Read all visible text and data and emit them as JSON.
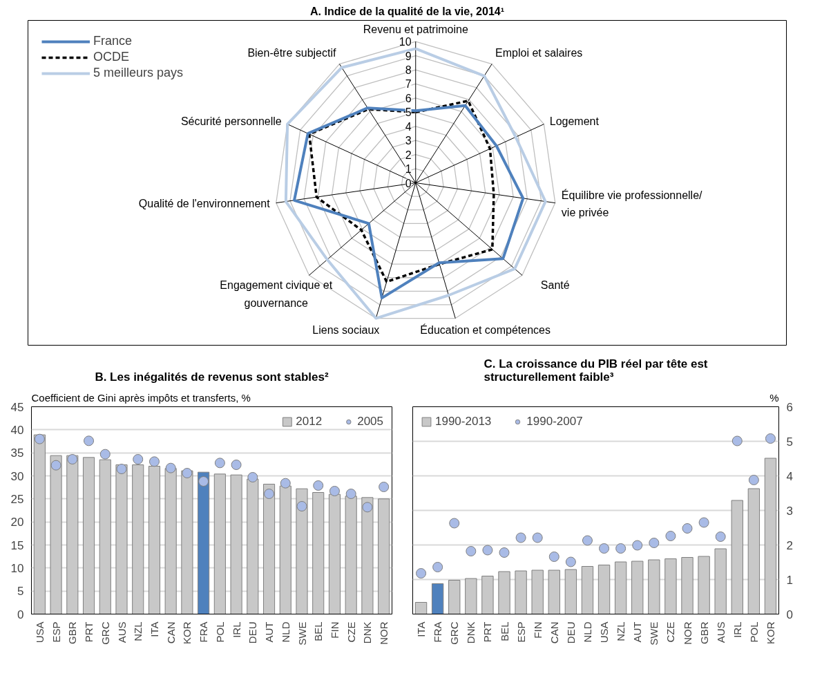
{
  "chart_data": [
    {
      "type": "radar",
      "title": "A. Indice de la qualité de la vie, 2014¹",
      "categories": [
        "Revenu et patrimoine",
        "Emploi et salaires",
        "Logement",
        "Équilibre vie professionnelle/\nvie privée",
        "Santé",
        "Éducation et compétences",
        "Liens sociaux",
        "Engagement civique et\ngouvernance",
        "Qualité de l'environnement",
        "Sécurité personnelle",
        "Bien-être subjectif"
      ],
      "ylim": [
        0,
        10
      ],
      "yticks": [
        0,
        1,
        2,
        3,
        4,
        5,
        6,
        7,
        8,
        9,
        10
      ],
      "grid": true,
      "legend": "top left",
      "marker": "none",
      "series": [
        {
          "name": "France",
          "color": "#4f81bd",
          "line_style": "solid",
          "values": [
            5.1,
            6.5,
            6.3,
            7.7,
            8.2,
            5.9,
            8.5,
            4.4,
            8.7,
            8.4,
            6.3
          ]
        },
        {
          "name": "OCDE",
          "color": "#000000",
          "line_style": "dashed",
          "values": [
            5.0,
            6.9,
            5.8,
            5.6,
            7.2,
            6.0,
            7.3,
            5.1,
            7.1,
            8.3,
            6.2
          ]
        },
        {
          "name": "5 meilleurs pays",
          "color": "#b9cde5",
          "line_style": "solid",
          "values": [
            9.5,
            9.0,
            7.8,
            9.3,
            9.3,
            8.3,
            10.0,
            8.3,
            9.3,
            10.0,
            9.7
          ]
        }
      ]
    },
    {
      "type": "bar",
      "title": "B. Les inégalités de revenus sont stables²",
      "ylabel": "Coefficient de Gini après impôts et transferts, %",
      "categories": [
        "USA",
        "ESP",
        "GBR",
        "PRT",
        "GRC",
        "AUS",
        "NZL",
        "ITA",
        "CAN",
        "KOR",
        "FRA",
        "POL",
        "IRL",
        "DEU",
        "AUT",
        "NLD",
        "SWE",
        "BEL",
        "FIN",
        "CZE",
        "DNK",
        "NOR"
      ],
      "ylim": [
        0,
        45
      ],
      "yticks": [
        0,
        5,
        10,
        15,
        20,
        25,
        30,
        35,
        40,
        45
      ],
      "grid": "y",
      "legend": "top right",
      "series": [
        {
          "name": "2012",
          "type": "bar",
          "colors": [
            "#c8c8c8",
            "#c8c8c8",
            "#c8c8c8",
            "#c8c8c8",
            "#c8c8c8",
            "#c8c8c8",
            "#c8c8c8",
            "#c8c8c8",
            "#c8c8c8",
            "#c8c8c8",
            "#4f81bd",
            "#c8c8c8",
            "#c8c8c8",
            "#c8c8c8",
            "#c8c8c8",
            "#c8c8c8",
            "#c8c8c8",
            "#c8c8c8",
            "#c8c8c8",
            "#c8c8c8",
            "#c8c8c8",
            "#c8c8c8"
          ],
          "values": [
            38.9,
            34.4,
            34.4,
            34.0,
            33.5,
            32.4,
            32.4,
            32.1,
            31.6,
            31.1,
            30.8,
            30.4,
            30.2,
            29.3,
            28.2,
            27.8,
            27.2,
            26.4,
            26.0,
            25.6,
            25.3,
            25.0
          ]
        },
        {
          "name": "2005",
          "type": "scatter",
          "marker": "circle",
          "color": "#a9bbe6",
          "values": [
            38.0,
            32.3,
            33.6,
            37.6,
            34.7,
            31.5,
            33.6,
            33.1,
            31.7,
            30.6,
            28.8,
            32.8,
            32.4,
            29.7,
            26.1,
            28.4,
            23.4,
            27.9,
            26.7,
            26.1,
            23.2,
            27.6
          ]
        }
      ]
    },
    {
      "type": "bar",
      "title": "C. La croissance du PIB réel par tête est\nstructurellement faible³",
      "y2label": "%",
      "categories": [
        "ITA",
        "FRA",
        "GRC",
        "DNK",
        "PRT",
        "BEL",
        "ESP",
        "FIN",
        "CAN",
        "DEU",
        "NLD",
        "USA",
        "NZL",
        "AUT",
        "SWE",
        "CZE",
        "NOR",
        "GBR",
        "AUS",
        "IRL",
        "POL",
        "KOR"
      ],
      "y2lim": [
        0,
        6
      ],
      "y2ticks": [
        0,
        1,
        2,
        3,
        4,
        5,
        6
      ],
      "grid": "y",
      "legend": "top left",
      "series": [
        {
          "name": "1990-2013",
          "type": "bar",
          "axis": "y2",
          "colors": [
            "#c8c8c8",
            "#4f81bd",
            "#c8c8c8",
            "#c8c8c8",
            "#c8c8c8",
            "#c8c8c8",
            "#c8c8c8",
            "#c8c8c8",
            "#c8c8c8",
            "#c8c8c8",
            "#c8c8c8",
            "#c8c8c8",
            "#c8c8c8",
            "#c8c8c8",
            "#c8c8c8",
            "#c8c8c8",
            "#c8c8c8",
            "#c8c8c8",
            "#c8c8c8",
            "#c8c8c8",
            "#c8c8c8",
            "#c8c8c8"
          ],
          "values": [
            0.34,
            0.88,
            0.98,
            1.03,
            1.1,
            1.23,
            1.25,
            1.27,
            1.27,
            1.29,
            1.38,
            1.42,
            1.51,
            1.53,
            1.57,
            1.6,
            1.64,
            1.67,
            1.89,
            3.29,
            3.63,
            4.51
          ]
        },
        {
          "name": "1990-2007",
          "type": "scatter",
          "axis": "y2",
          "marker": "circle",
          "color": "#a9bbe6",
          "values": [
            1.18,
            1.36,
            2.63,
            1.82,
            1.85,
            1.78,
            2.21,
            2.21,
            1.66,
            1.51,
            2.13,
            1.9,
            1.9,
            1.99,
            2.06,
            2.26,
            2.48,
            2.65,
            2.24,
            5.01,
            3.88,
            5.08
          ]
        }
      ]
    }
  ]
}
